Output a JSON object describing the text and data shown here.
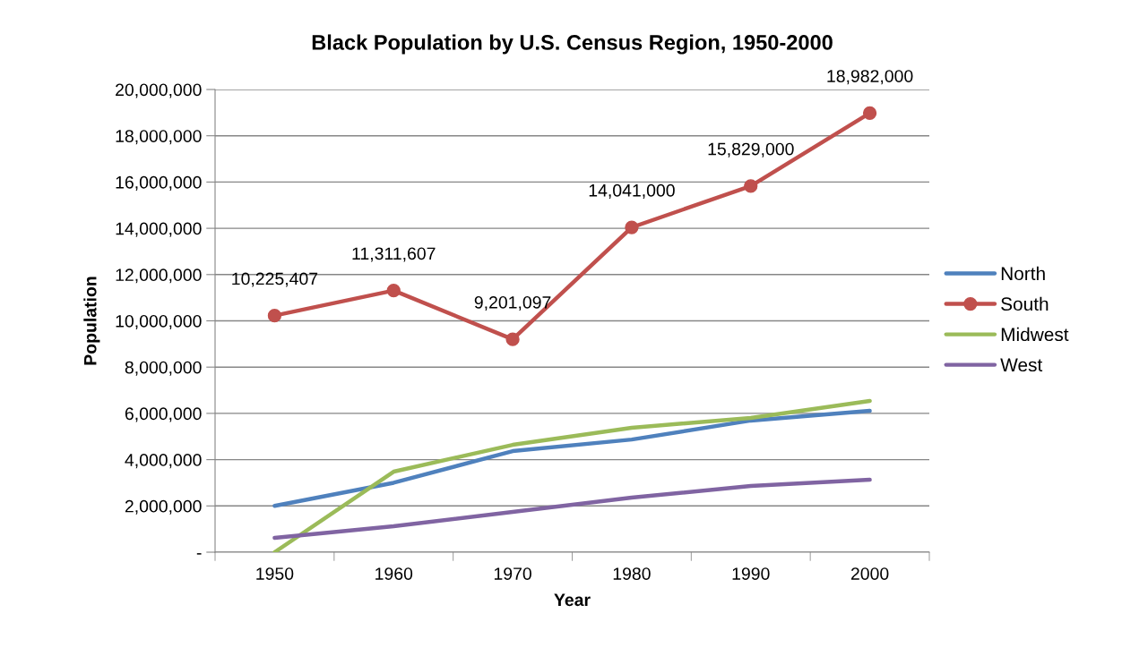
{
  "chart_data": {
    "type": "line",
    "title": "Black Population by U.S. Census Region, 1950-2000",
    "xlabel": "Year",
    "ylabel": "Population",
    "categories": [
      "1950",
      "1960",
      "1970",
      "1980",
      "1990",
      "2000"
    ],
    "series": [
      {
        "name": "North",
        "color": "#4f81bd",
        "marker": "none",
        "values": [
          2000000,
          3000000,
          4370000,
          4870000,
          5690000,
          6110000
        ]
      },
      {
        "name": "South",
        "color": "#c0504d",
        "marker": "circle",
        "values": [
          10225407,
          11311607,
          9201097,
          14041000,
          15829000,
          18982000
        ],
        "value_labels": [
          "10,225,407",
          "11,311,607",
          "9,201,097",
          "14,041,000",
          "15,829,000",
          "18,982,000"
        ]
      },
      {
        "name": "Midwest",
        "color": "#9bbb59",
        "marker": "none",
        "values": [
          0,
          3480000,
          4640000,
          5380000,
          5800000,
          6540000
        ]
      },
      {
        "name": "West",
        "color": "#8064a2",
        "marker": "none",
        "values": [
          620000,
          1120000,
          1740000,
          2360000,
          2860000,
          3130000
        ]
      }
    ],
    "ylim": [
      0,
      20000000
    ],
    "yticks": [
      {
        "value": 0,
        "label": "-"
      },
      {
        "value": 2000000,
        "label": "2,000,000"
      },
      {
        "value": 4000000,
        "label": "4,000,000"
      },
      {
        "value": 6000000,
        "label": "6,000,000"
      },
      {
        "value": 8000000,
        "label": "8,000,000"
      },
      {
        "value": 10000000,
        "label": "10,000,000"
      },
      {
        "value": 12000000,
        "label": "12,000,000"
      },
      {
        "value": 14000000,
        "label": "14,000,000"
      },
      {
        "value": 16000000,
        "label": "16,000,000"
      },
      {
        "value": 18000000,
        "label": "18,000,000"
      },
      {
        "value": 20000000,
        "label": "20,000,000"
      }
    ],
    "grid": "y",
    "legend": "right",
    "line_style": "solid"
  }
}
